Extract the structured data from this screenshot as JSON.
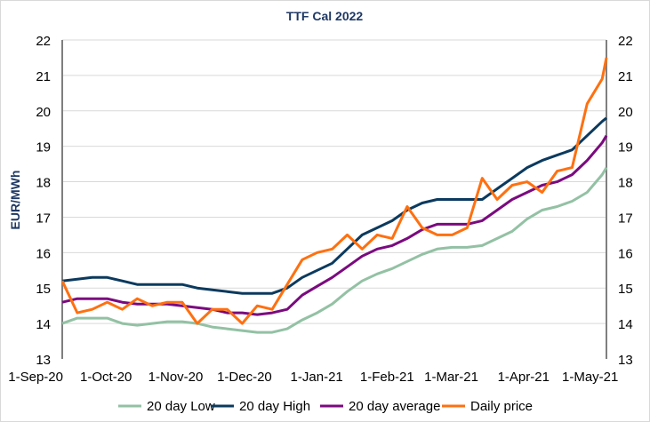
{
  "chart_data": {
    "type": "line",
    "title": "TTF Cal 2022",
    "ylabel": "EUR/MWh",
    "xlabel": "",
    "ylim": [
      13,
      22
    ],
    "yticks": [
      13,
      14,
      15,
      16,
      17,
      18,
      19,
      20,
      21,
      22
    ],
    "grid": true,
    "legend": "bottom",
    "start_date": "2020-09-01",
    "x_days": [
      0,
      7,
      14,
      21,
      28,
      35,
      42,
      49,
      56,
      63,
      70,
      77,
      84,
      91,
      98,
      105,
      112,
      119,
      126,
      133,
      140,
      147,
      154,
      161,
      168,
      175,
      182,
      189,
      196,
      203,
      210,
      217,
      224,
      231,
      238,
      245,
      252,
      254
    ],
    "xtick_labels": [
      {
        "label": "1-Sep-20",
        "day": 0
      },
      {
        "label": "1-Oct-20",
        "day": 30
      },
      {
        "label": "1-Nov-20",
        "day": 61
      },
      {
        "label": "1-Dec-20",
        "day": 91
      },
      {
        "label": "1-Jan-21",
        "day": 122
      },
      {
        "label": "1-Feb-21",
        "day": 153
      },
      {
        "label": "1-Mar-21",
        "day": 181
      },
      {
        "label": "1-Apr-21",
        "day": 212
      },
      {
        "label": "1-May-21",
        "day": 242
      }
    ],
    "series": [
      {
        "name": "20 day Low",
        "color": "#93c1a4",
        "values": [
          14.0,
          14.15,
          14.15,
          14.15,
          14.0,
          13.95,
          14.0,
          14.05,
          14.05,
          14.0,
          13.9,
          13.85,
          13.8,
          13.75,
          13.75,
          13.85,
          14.1,
          14.3,
          14.55,
          14.9,
          15.2,
          15.4,
          15.55,
          15.75,
          15.95,
          16.1,
          16.15,
          16.15,
          16.2,
          16.4,
          16.6,
          16.95,
          17.2,
          17.3,
          17.45,
          17.7,
          18.2,
          18.4
        ]
      },
      {
        "name": "20 day High",
        "color": "#0b3a5e",
        "values": [
          15.2,
          15.25,
          15.3,
          15.3,
          15.2,
          15.1,
          15.1,
          15.1,
          15.1,
          15.0,
          14.95,
          14.9,
          14.85,
          14.85,
          14.85,
          15.0,
          15.3,
          15.5,
          15.7,
          16.1,
          16.5,
          16.7,
          16.9,
          17.2,
          17.4,
          17.5,
          17.5,
          17.5,
          17.5,
          17.8,
          18.1,
          18.4,
          18.6,
          18.75,
          18.9,
          19.3,
          19.7,
          19.8
        ]
      },
      {
        "name": "20 day average",
        "color": "#7b0a7f",
        "values": [
          14.6,
          14.7,
          14.7,
          14.7,
          14.6,
          14.55,
          14.55,
          14.55,
          14.5,
          14.45,
          14.4,
          14.3,
          14.3,
          14.25,
          14.3,
          14.4,
          14.8,
          15.05,
          15.3,
          15.6,
          15.9,
          16.1,
          16.2,
          16.4,
          16.65,
          16.8,
          16.8,
          16.8,
          16.9,
          17.2,
          17.5,
          17.7,
          17.9,
          18.0,
          18.2,
          18.6,
          19.1,
          19.3
        ]
      },
      {
        "name": "Daily price",
        "color": "#ff7010",
        "values": [
          15.2,
          14.3,
          14.4,
          14.6,
          14.4,
          14.7,
          14.5,
          14.6,
          14.6,
          14.0,
          14.4,
          14.4,
          14.0,
          14.5,
          14.4,
          15.1,
          15.8,
          16.0,
          16.1,
          16.5,
          16.1,
          16.5,
          16.4,
          17.3,
          16.7,
          16.5,
          16.5,
          16.7,
          18.1,
          17.5,
          17.9,
          18.0,
          17.7,
          18.3,
          18.4,
          20.2,
          20.9,
          21.5
        ]
      }
    ]
  }
}
